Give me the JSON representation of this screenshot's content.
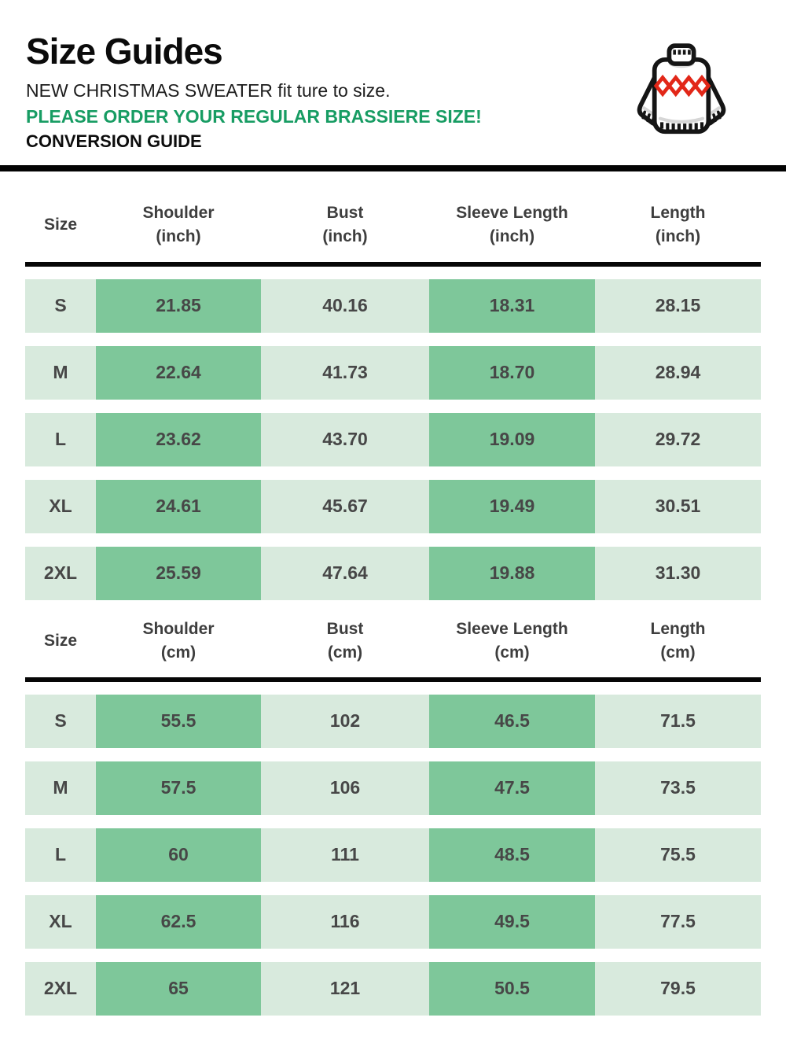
{
  "header": {
    "title": "Size Guides",
    "subtitle": "NEW CHRISTMAS SWEATER fit ture to size.",
    "note": "PLEASE ORDER YOUR REGULAR BRASSIERE SIZE!",
    "note_color": "#179c63",
    "conversion_label": "CONVERSION GUIDE"
  },
  "icon": {
    "name": "christmas-sweater-icon",
    "outline_color": "#151515",
    "pattern_color": "#e22718"
  },
  "colors": {
    "row_bg": "#d8eadd",
    "highlight_bg": "#7ec79a",
    "cell_text": "#474747",
    "divider": "#060606"
  },
  "tables": [
    {
      "unit": "inch",
      "columns": [
        {
          "label": "Size",
          "unit": ""
        },
        {
          "label": "Shoulder",
          "unit": "(inch)"
        },
        {
          "label": "Bust",
          "unit": "(inch)"
        },
        {
          "label": "Sleeve Length",
          "unit": "(inch)"
        },
        {
          "label": "Length",
          "unit": "(inch)"
        }
      ],
      "rows": [
        {
          "size": "S",
          "values": [
            "21.85",
            "40.16",
            "18.31",
            "28.15"
          ]
        },
        {
          "size": "M",
          "values": [
            "22.64",
            "41.73",
            "18.70",
            "28.94"
          ]
        },
        {
          "size": "L",
          "values": [
            "23.62",
            "43.70",
            "19.09",
            "29.72"
          ]
        },
        {
          "size": "XL",
          "values": [
            "24.61",
            "45.67",
            "19.49",
            "30.51"
          ]
        },
        {
          "size": "2XL",
          "values": [
            "25.59",
            "47.64",
            "19.88",
            "31.30"
          ]
        }
      ]
    },
    {
      "unit": "cm",
      "columns": [
        {
          "label": "Size",
          "unit": ""
        },
        {
          "label": "Shoulder",
          "unit": "(cm)"
        },
        {
          "label": "Bust",
          "unit": "(cm)"
        },
        {
          "label": "Sleeve Length",
          "unit": "(cm)"
        },
        {
          "label": "Length",
          "unit": "(cm)"
        }
      ],
      "rows": [
        {
          "size": "S",
          "values": [
            "55.5",
            "102",
            "46.5",
            "71.5"
          ]
        },
        {
          "size": "M",
          "values": [
            "57.5",
            "106",
            "47.5",
            "73.5"
          ]
        },
        {
          "size": "L",
          "values": [
            "60",
            "111",
            "48.5",
            "75.5"
          ]
        },
        {
          "size": "XL",
          "values": [
            "62.5",
            "116",
            "49.5",
            "77.5"
          ]
        },
        {
          "size": "2XL",
          "values": [
            "65",
            "121",
            "50.5",
            "79.5"
          ]
        }
      ]
    }
  ]
}
